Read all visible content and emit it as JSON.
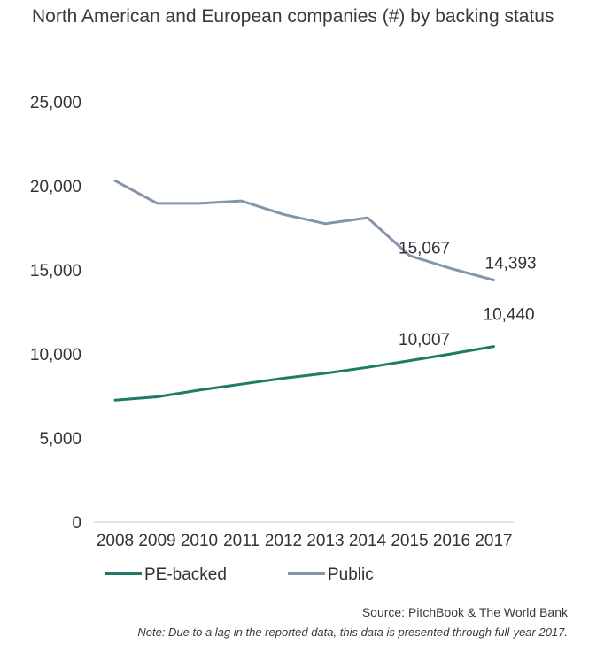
{
  "title": "North American and European companies (#) by backing status",
  "source": "Source: PitchBook & The World Bank",
  "note": "Note: Due to a lag in the reported data, this data is presented through full-year 2017.",
  "chart_data": {
    "type": "line",
    "title": "North American and European companies (#) by backing status",
    "x": [
      "2008",
      "2009",
      "2010",
      "2011",
      "2012",
      "2013",
      "2014",
      "2015",
      "2016",
      "2017"
    ],
    "ylim": [
      0,
      25000
    ],
    "yticks": [
      0,
      5000,
      10000,
      15000,
      20000,
      25000
    ],
    "ytick_labels": [
      "0",
      "5,000",
      "10,000",
      "15,000",
      "20,000",
      "25,000"
    ],
    "grid": false,
    "legend_position": "bottom",
    "series": [
      {
        "name": "PE-backed",
        "color": "#1f7a68",
        "values": [
          7250,
          7450,
          7850,
          8200,
          8550,
          8850,
          9200,
          9600,
          10007,
          10440
        ],
        "data_labels": [
          {
            "index": 8,
            "text": "10,007"
          },
          {
            "index": 9,
            "text": "10,440"
          }
        ]
      },
      {
        "name": "Public",
        "color": "#8396aa",
        "values": [
          20300,
          18950,
          18950,
          19100,
          18300,
          17750,
          18100,
          15850,
          15067,
          14393
        ],
        "data_labels": [
          {
            "index": 8,
            "text": "15,067"
          },
          {
            "index": 9,
            "text": "14,393"
          }
        ]
      }
    ]
  }
}
